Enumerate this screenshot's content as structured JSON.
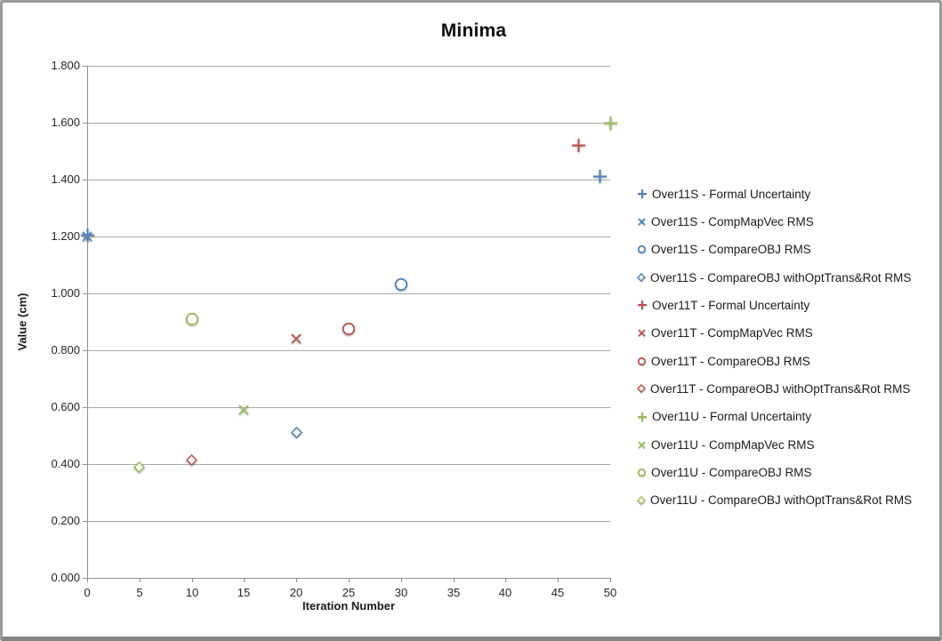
{
  "chart_data": {
    "type": "scatter",
    "title": "Minima",
    "xlabel": "Iteration Number",
    "ylabel": "Value (cm)",
    "xlim": [
      0,
      50
    ],
    "ylim": [
      0.0,
      1.8
    ],
    "x_ticks": [
      0,
      5,
      10,
      15,
      20,
      25,
      30,
      35,
      40,
      45,
      50
    ],
    "y_ticks": [
      "1.800",
      "1.600",
      "1.400",
      "1.200",
      "1.000",
      "0.800",
      "0.600",
      "0.400",
      "0.200",
      "0.000"
    ],
    "grid": "horizontal",
    "legend_position": "right",
    "colors": {
      "Over11S": "#4F81BD",
      "Over11T": "#C0504D",
      "Over11U": "#9BBB59",
      "gridline": "#a9a9a9",
      "axis": "#8f8f8f",
      "marker_fill": "#ffffff"
    },
    "series": [
      {
        "name": "Over11S - Formal Uncertainty",
        "marker": "plus",
        "color": "#4F81BD",
        "points": [
          [
            0,
            1.205
          ],
          [
            49,
            1.41
          ]
        ]
      },
      {
        "name": "Over11S - CompMapVec RMS",
        "marker": "x",
        "color": "#4F81BD",
        "points": [
          [
            0,
            1.2
          ]
        ]
      },
      {
        "name": "Over11S - CompareOBJ RMS",
        "marker": "circle",
        "color": "#4F81BD",
        "points": [
          [
            30,
            1.03
          ]
        ]
      },
      {
        "name": "Over11S - CompareOBJ withOptTrans&Rot RMS",
        "marker": "diamond",
        "color": "#4F81BD",
        "points": [
          [
            20,
            0.51
          ]
        ]
      },
      {
        "name": "Over11T - Formal Uncertainty",
        "marker": "plus",
        "color": "#C0504D",
        "points": [
          [
            47,
            1.52
          ]
        ]
      },
      {
        "name": "Over11T - CompMapVec RMS",
        "marker": "x",
        "color": "#C0504D",
        "points": [
          [
            20,
            0.84
          ]
        ]
      },
      {
        "name": "Over11T - CompareOBJ RMS",
        "marker": "circle",
        "color": "#C0504D",
        "points": [
          [
            25,
            0.875
          ]
        ]
      },
      {
        "name": "Over11T - CompareOBJ withOptTrans&Rot RMS",
        "marker": "diamond",
        "color": "#C0504D",
        "points": [
          [
            10,
            0.415
          ]
        ]
      },
      {
        "name": "Over11U - Formal Uncertainty",
        "marker": "plus",
        "color": "#9BBB59",
        "points": [
          [
            50,
            1.6
          ]
        ]
      },
      {
        "name": "Over11U - CompMapVec RMS",
        "marker": "x",
        "color": "#9BBB59",
        "points": [
          [
            15,
            0.59
          ]
        ]
      },
      {
        "name": "Over11U - CompareOBJ RMS",
        "marker": "circle",
        "color": "#9BBB59",
        "points": [
          [
            10,
            0.91
          ]
        ]
      },
      {
        "name": "Over11U - CompareOBJ withOptTrans&Rot RMS",
        "marker": "diamond",
        "color": "#9BBB59",
        "points": [
          [
            5,
            0.39
          ]
        ]
      }
    ]
  }
}
